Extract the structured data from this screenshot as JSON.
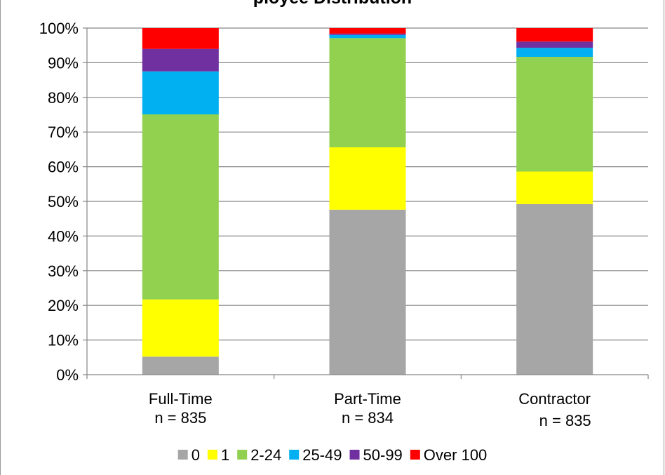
{
  "chart_data": {
    "type": "bar",
    "stacked": true,
    "percent_stacked": true,
    "title": "ployee Distribution",
    "categories": [
      "Full-Time",
      "Part-Time",
      "Contractor"
    ],
    "category_notes": [
      "n = 835",
      "n = 834",
      "n = 835"
    ],
    "ylim": [
      0,
      100
    ],
    "yticks": [
      "0%",
      "10%",
      "20%",
      "30%",
      "40%",
      "50%",
      "60%",
      "70%",
      "80%",
      "90%",
      "100%"
    ],
    "grid": true,
    "legend_position": "bottom",
    "series": [
      {
        "name": "0",
        "color": "#A6A6A6",
        "values": [
          5.2,
          47.6,
          49.2
        ]
      },
      {
        "name": "1",
        "color": "#FFFF00",
        "values": [
          16.5,
          18.0,
          9.4
        ]
      },
      {
        "name": "2-24",
        "color": "#92D050",
        "values": [
          53.4,
          31.5,
          33.1
        ]
      },
      {
        "name": "25-49",
        "color": "#00B0F0",
        "values": [
          12.4,
          0.9,
          2.6
        ]
      },
      {
        "name": "50-99",
        "color": "#7030A0",
        "values": [
          6.5,
          0.4,
          1.8
        ]
      },
      {
        "name": "Over 100",
        "color": "#FF0000",
        "values": [
          6.0,
          1.6,
          3.9
        ]
      }
    ]
  }
}
